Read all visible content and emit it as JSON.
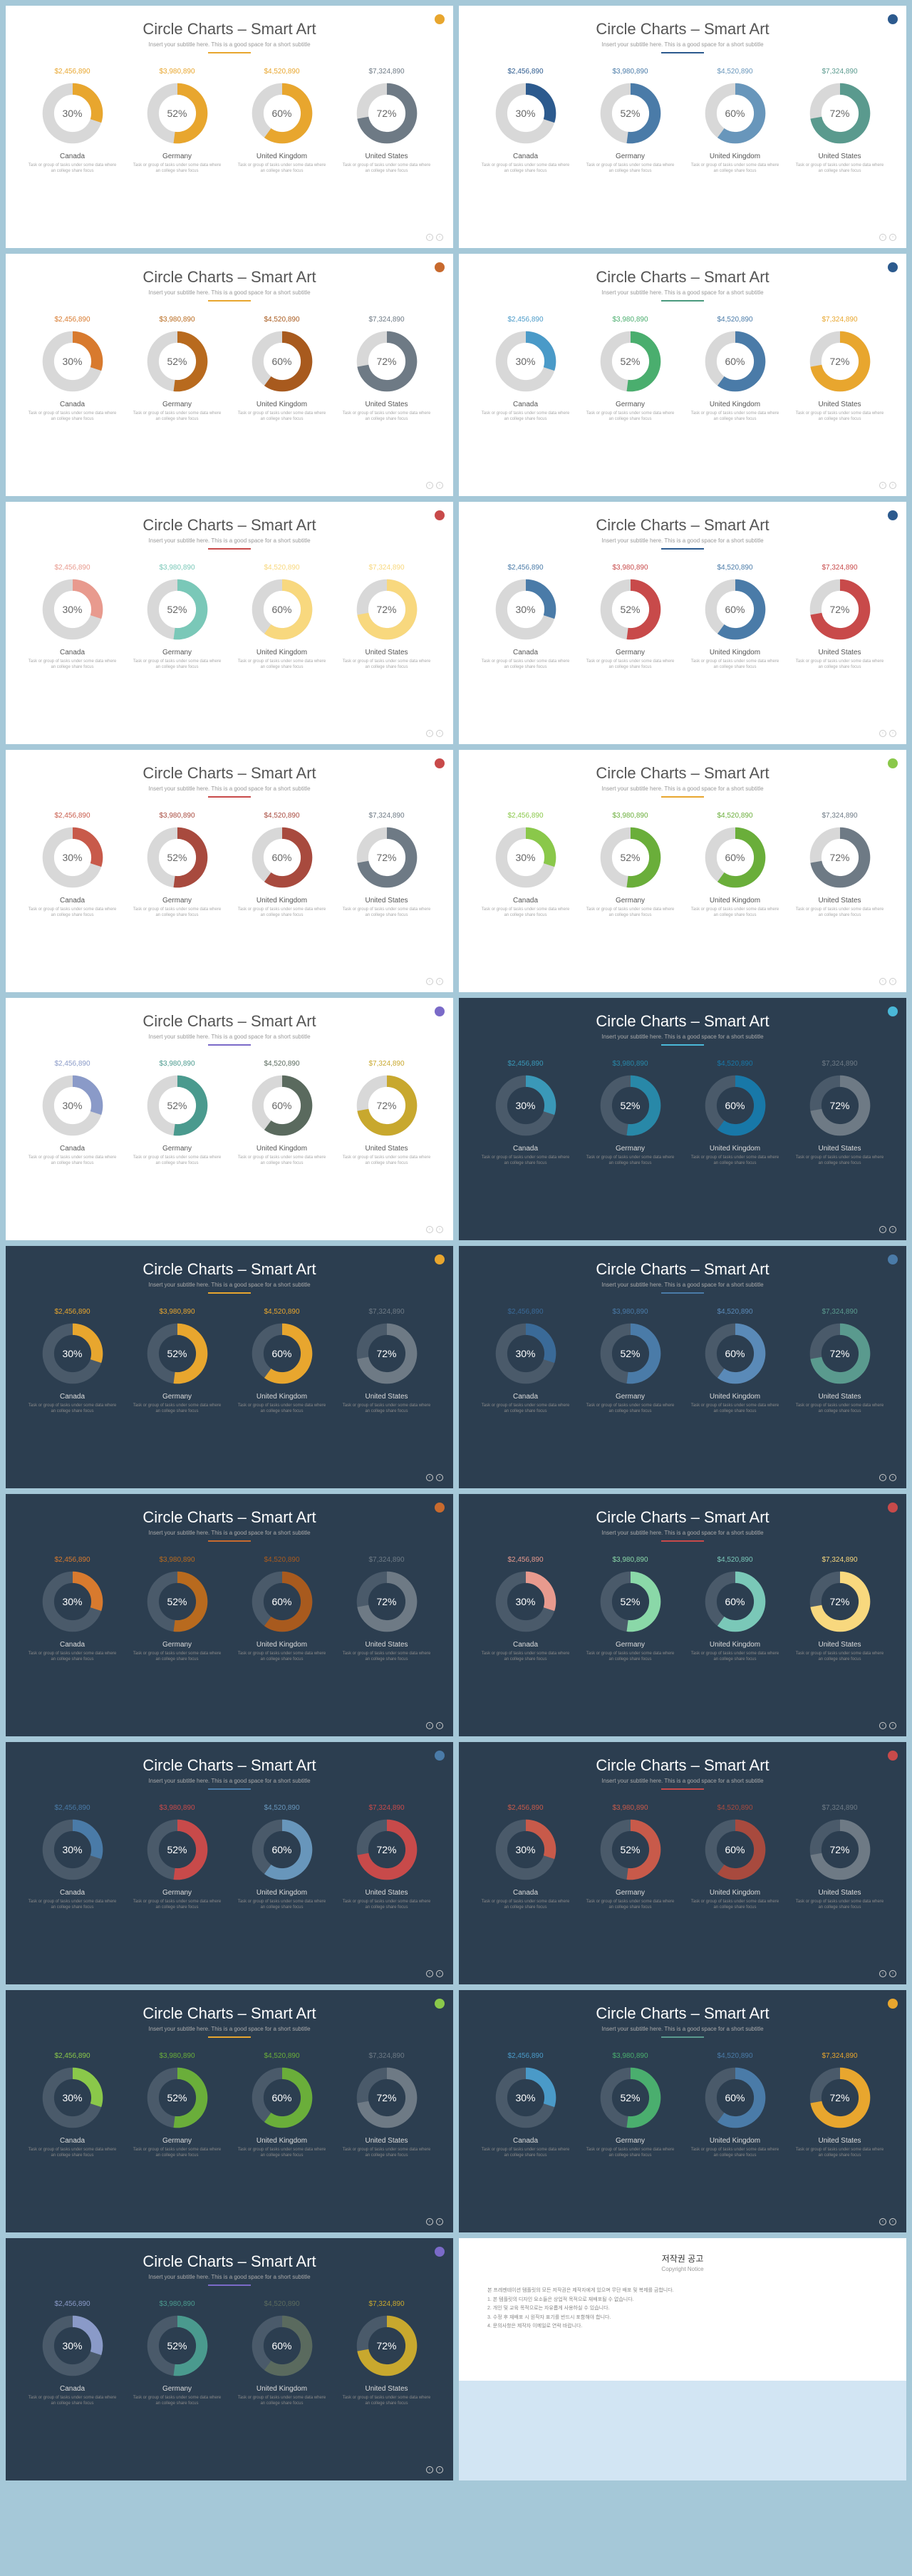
{
  "common": {
    "title": "Circle Charts – Smart Art",
    "subtitle": "Insert your subtitle here. This is a good space for a short subtitle",
    "desc": "Task or group of tasks under some data where an college share focus",
    "nav_left": "‹",
    "nav_right": "›"
  },
  "circles": [
    {
      "pct": 30,
      "value": "$2,456,890",
      "label": "Canada"
    },
    {
      "pct": 52,
      "value": "$3,980,890",
      "label": "Germany"
    },
    {
      "pct": 60,
      "value": "$4,520,890",
      "label": "United Kingdom"
    },
    {
      "pct": 72,
      "value": "$7,324,890",
      "label": "United States"
    }
  ],
  "track_light": "#d8d8d8",
  "track_dark": "#4a5a6a",
  "slides": [
    {
      "dark": false,
      "dot": "#e8a62e",
      "underline": "#e8a62e",
      "colors": [
        "#e8a62e",
        "#e8a62e",
        "#e8a62e",
        "#6e7a85"
      ]
    },
    {
      "dark": false,
      "dot": "#2c5a8e",
      "underline": "#2c5a8e",
      "colors": [
        "#2c5a8e",
        "#4a7ba8",
        "#6896bb",
        "#5a9a8e"
      ]
    },
    {
      "dark": false,
      "dot": "#c86a2e",
      "underline": "#e8a62e",
      "colors": [
        "#d87a2e",
        "#b86a1e",
        "#a85a1e",
        "#6e7a85"
      ]
    },
    {
      "dark": false,
      "dot": "#2c5a8e",
      "underline": "#4a9a7e",
      "colors": [
        "#4a9ac8",
        "#4aae6e",
        "#4a7ba8",
        "#e8a62e"
      ]
    },
    {
      "dark": false,
      "dot": "#c84a4a",
      "underline": "#c84a4a",
      "colors": [
        "#e89a8e",
        "#7ac8b8",
        "#f8d87e",
        "#f8d87e"
      ]
    },
    {
      "dark": false,
      "dot": "#2c5a8e",
      "underline": "#2c5a8e",
      "colors": [
        "#4a7ba8",
        "#c84a4a",
        "#4a7ba8",
        "#c84a4a"
      ]
    },
    {
      "dark": false,
      "dot": "#c84a4a",
      "underline": "#c84a4a",
      "colors": [
        "#c85a4a",
        "#a84a3e",
        "#a84a3e",
        "#6e7a85"
      ]
    },
    {
      "dark": false,
      "dot": "#8ac84a",
      "underline": "#e8a62e",
      "colors": [
        "#8ac84a",
        "#6aae3a",
        "#6aae3a",
        "#6e7a85"
      ]
    },
    {
      "dark": false,
      "dot": "#7a6ac8",
      "underline": "#7a6ac8",
      "colors": [
        "#8a9ac8",
        "#4a9a8e",
        "#5a6a5e",
        "#c8a82e"
      ]
    },
    {
      "dark": true,
      "dot": "#4ab8d8",
      "underline": "#4ab8d8",
      "colors": [
        "#3a98b8",
        "#2888a8",
        "#1878a8",
        "#6e7a85"
      ]
    },
    {
      "dark": true,
      "dot": "#e8a62e",
      "underline": "#e8a62e",
      "colors": [
        "#e8a62e",
        "#e8a62e",
        "#e8a62e",
        "#6e7a85"
      ]
    },
    {
      "dark": true,
      "dot": "#4a7ba8",
      "underline": "#4a7ba8",
      "colors": [
        "#3a6a98",
        "#4a7ba8",
        "#5a8ab8",
        "#5a9a8e"
      ]
    },
    {
      "dark": true,
      "dot": "#c86a2e",
      "underline": "#c86a2e",
      "colors": [
        "#d87a2e",
        "#b86a1e",
        "#a85a1e",
        "#6e7a85"
      ]
    },
    {
      "dark": true,
      "dot": "#c84a4a",
      "underline": "#c84a4a",
      "colors": [
        "#e89a8e",
        "#8ad8a8",
        "#7ac8b8",
        "#f8d87e"
      ]
    },
    {
      "dark": true,
      "dot": "#4a7ba8",
      "underline": "#4a7ba8",
      "colors": [
        "#4a7ba8",
        "#c84a4a",
        "#6896bb",
        "#c84a4a"
      ]
    },
    {
      "dark": true,
      "dot": "#c84a4a",
      "underline": "#c84a4a",
      "colors": [
        "#c85a4a",
        "#c85a4a",
        "#a84a3e",
        "#6e7a85"
      ]
    },
    {
      "dark": true,
      "dot": "#8ac84a",
      "underline": "#e8a62e",
      "colors": [
        "#8ac84a",
        "#6aae3a",
        "#6aae3a",
        "#6e7a85"
      ]
    },
    {
      "dark": true,
      "dot": "#e8a62e",
      "underline": "#5a9a8e",
      "colors": [
        "#4a9ac8",
        "#4aae6e",
        "#4a7ba8",
        "#e8a62e"
      ]
    },
    {
      "dark": true,
      "dot": "#7a6ac8",
      "underline": "#7a6ac8",
      "colors": [
        "#8a9ac8",
        "#4a9a8e",
        "#5a6a5e",
        "#c8a82e"
      ]
    }
  ],
  "copyright": {
    "title": "저작권 공고",
    "subtitle": "Copyright Notice",
    "lines": [
      "본 프레젠테이션 템플릿의 모든 저작권은 제작자에게 있으며 무단 배포 및 복제를 금합니다.",
      "1. 본 템플릿의 디자인 요소들은 상업적 목적으로 재배포될 수 없습니다.",
      "2. 개인 및 교육 목적으로는 자유롭게 사용하실 수 있습니다.",
      "3. 수정 후 재배포 시 원작자 표기를 반드시 포함해야 합니다.",
      "4. 문의사항은 제작자 이메일로 연락 바랍니다."
    ]
  }
}
